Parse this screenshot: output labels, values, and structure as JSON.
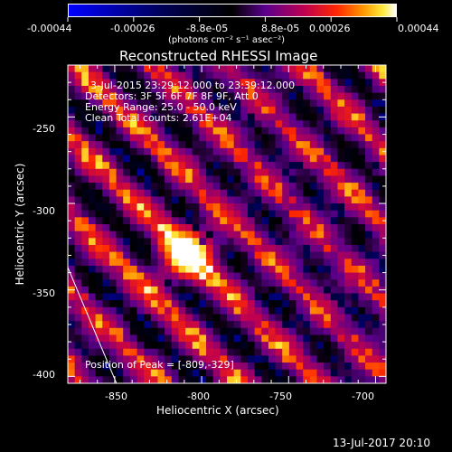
{
  "colorbar": {
    "tick_labels": [
      "-0.00044",
      "-0.00026",
      "-8.8e-05",
      "8.8e-05",
      "0.00026",
      "0.00044"
    ],
    "unit_label": "(photons cm⁻² s⁻¹ asec⁻²)",
    "range": [
      -0.00044,
      0.00044
    ]
  },
  "chart_data": {
    "type": "heatmap",
    "title": "Reconstructed RHESSI Image",
    "xlabel": "Heliocentric X (arcsec)",
    "ylabel": "Heliocentric Y (arcsec)",
    "xlim": [
      -877,
      -694
    ],
    "ylim": [
      -404,
      -220
    ],
    "x_ticks": [
      -850,
      -800,
      -750,
      -700
    ],
    "y_ticks": [
      -250,
      -300,
      -350,
      -400
    ],
    "peak": [
      -809,
      -329
    ],
    "annotations": [
      "3-Jul-2015 23:29:12.000 to 23:39:12.000",
      "Detectors: 3F 5F 6F 7F 8F 9F, Att 0",
      "Energy Range: 25.0 - 50.0 keV",
      "Clean    Total counts: 2.61E+04"
    ],
    "peak_label": "Position of Peak = [-809,-329]",
    "limb_line": [
      [
        -877,
        -337
      ],
      [
        -849,
        -404
      ]
    ]
  },
  "footer": {
    "date": "13-Jul-2017 20:10"
  }
}
